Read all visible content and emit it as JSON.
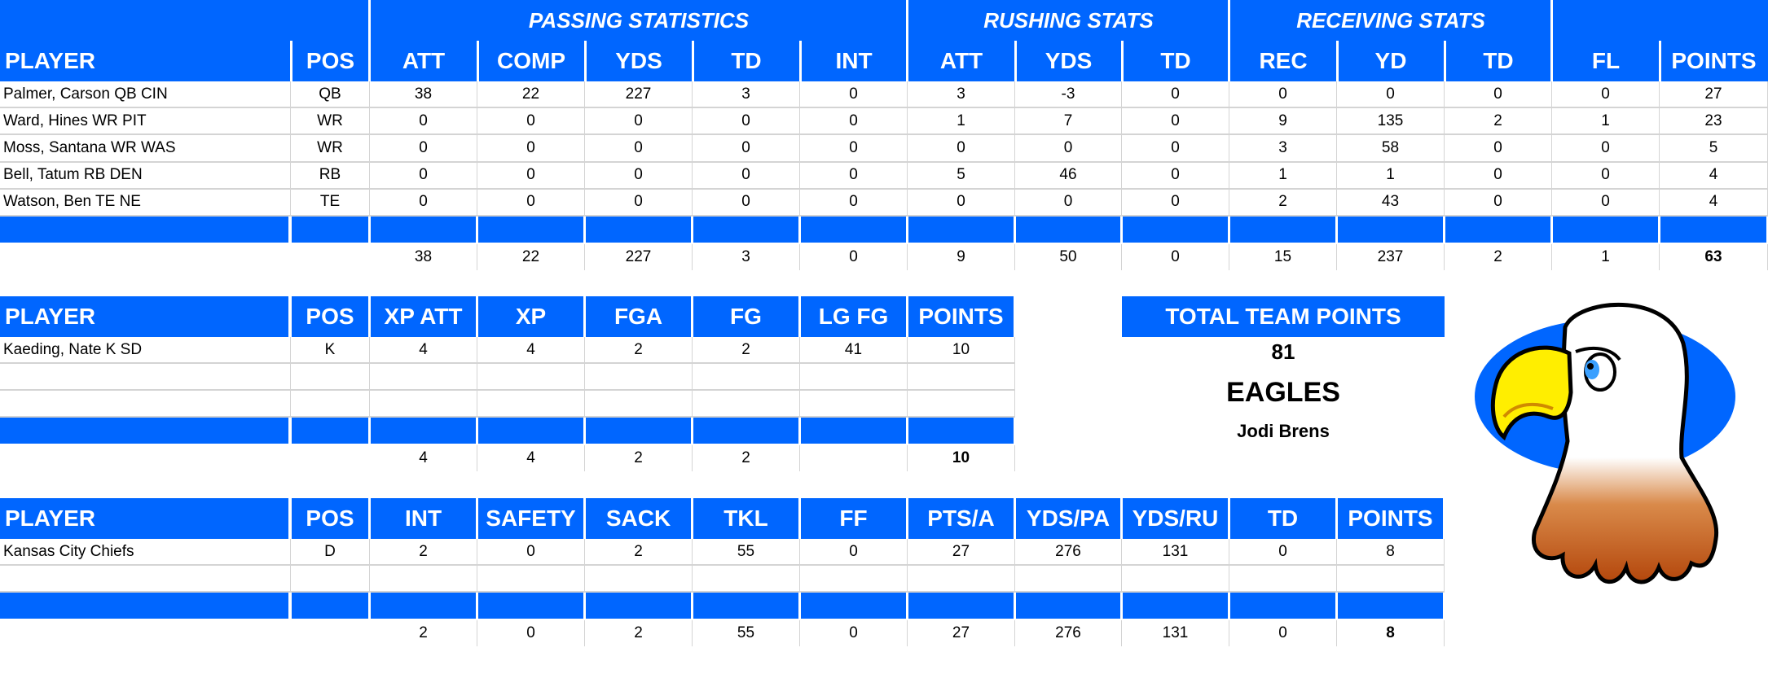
{
  "colors": {
    "header_blue": "#0066ff",
    "grid": "#d4d4d4"
  },
  "offense": {
    "group_headers": [
      {
        "label": "PASSING STATISTICS"
      },
      {
        "label": "RUSHING STATS"
      },
      {
        "label": "RECEIVING STATS"
      }
    ],
    "columns": [
      "PLAYER",
      "POS",
      "ATT",
      "COMP",
      "YDS",
      "TD",
      "INT",
      "ATT",
      "YDS",
      "TD",
      "REC",
      "YD",
      "TD",
      "FL",
      "POINTS"
    ],
    "rows": [
      [
        "Palmer, Carson QB CIN",
        "QB",
        "38",
        "22",
        "227",
        "3",
        "0",
        "3",
        "-3",
        "0",
        "0",
        "0",
        "0",
        "0",
        "27"
      ],
      [
        "Ward, Hines WR PIT",
        "WR",
        "0",
        "0",
        "0",
        "0",
        "0",
        "1",
        "7",
        "0",
        "9",
        "135",
        "2",
        "1",
        "23"
      ],
      [
        "Moss, Santana WR WAS",
        "WR",
        "0",
        "0",
        "0",
        "0",
        "0",
        "0",
        "0",
        "0",
        "3",
        "58",
        "0",
        "0",
        "5"
      ],
      [
        "Bell, Tatum RB DEN",
        "RB",
        "0",
        "0",
        "0",
        "0",
        "0",
        "5",
        "46",
        "0",
        "1",
        "1",
        "0",
        "0",
        "4"
      ],
      [
        "Watson, Ben TE NE",
        "TE",
        "0",
        "0",
        "0",
        "0",
        "0",
        "0",
        "0",
        "0",
        "2",
        "43",
        "0",
        "0",
        "4"
      ]
    ],
    "totals": [
      "",
      "",
      "38",
      "22",
      "227",
      "3",
      "0",
      "9",
      "50",
      "0",
      "15",
      "237",
      "2",
      "1",
      "63"
    ]
  },
  "kicker": {
    "columns": [
      "PLAYER",
      "POS",
      "XP ATT",
      "XP",
      "FGA",
      "FG",
      "LG FG",
      "POINTS"
    ],
    "rows": [
      [
        "Kaeding, Nate K SD",
        "K",
        "4",
        "4",
        "2",
        "2",
        "41",
        "10"
      ],
      [
        "",
        "",
        "",
        "",
        "",
        "",
        "",
        ""
      ],
      [
        "",
        "",
        "",
        "",
        "",
        "",
        "",
        ""
      ]
    ],
    "totals": [
      "",
      "",
      "4",
      "4",
      "2",
      "2",
      "",
      "10"
    ]
  },
  "defense": {
    "columns": [
      "PLAYER",
      "POS",
      "INT",
      "SAFETY",
      "SACK",
      "TKL",
      "FF",
      "PTS/A",
      "YDS/PA",
      "YDS/RU",
      "TD",
      "POINTS"
    ],
    "rows": [
      [
        "Kansas City Chiefs",
        "D",
        "2",
        "0",
        "2",
        "55",
        "0",
        "27",
        "276",
        "131",
        "0",
        "8"
      ],
      [
        "",
        "",
        "",
        "",
        "",
        "",
        "",
        "",
        "",
        "",
        "",
        ""
      ]
    ],
    "totals": [
      "",
      "",
      "2",
      "0",
      "2",
      "55",
      "0",
      "27",
      "276",
      "131",
      "0",
      "8"
    ]
  },
  "team": {
    "total_label": "TOTAL TEAM POINTS",
    "total_points": "81",
    "name": "EAGLES",
    "owner": "Jodi Brens",
    "logo": "eagle-mascot-icon"
  }
}
